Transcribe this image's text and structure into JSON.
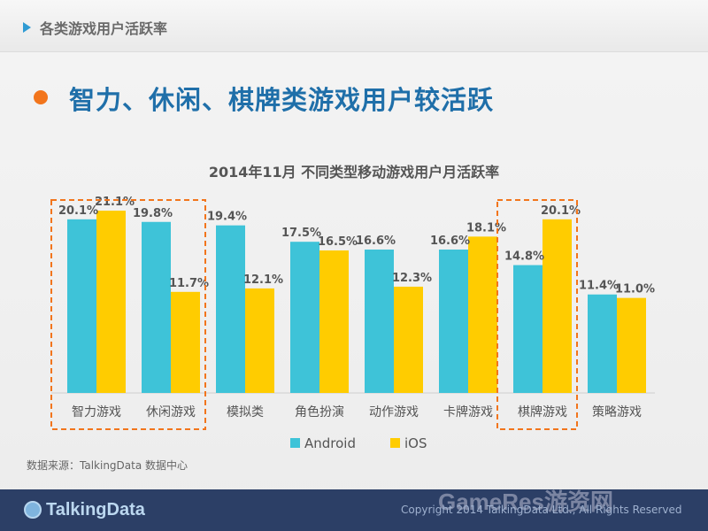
{
  "header": {
    "section_title": "各类游戏用户活跃率"
  },
  "headline": "智力、休闲、棋牌类游戏用户较活跃",
  "chart_data": {
    "type": "bar",
    "title": "2014年11月 不同类型移动游戏用户月活跃率",
    "categories": [
      "智力游戏",
      "休闲游戏",
      "模拟类",
      "角色扮演",
      "动作游戏",
      "卡牌游戏",
      "棋牌游戏",
      "策略游戏"
    ],
    "series": [
      {
        "name": "Android",
        "values": [
          20.1,
          19.8,
          19.4,
          17.5,
          16.6,
          16.6,
          14.8,
          11.4
        ],
        "color": "#3ec3d8"
      },
      {
        "name": "iOS",
        "values": [
          21.1,
          11.7,
          12.1,
          16.5,
          12.3,
          18.1,
          20.1,
          11.0
        ],
        "color": "#ffcc00"
      }
    ],
    "ylim": [
      0,
      25
    ],
    "highlight_color": "#f2751c",
    "data_labels": true,
    "grid": false,
    "legend": "bottom"
  },
  "source_note": "数据来源：TalkingData 数据中心",
  "footer": {
    "logo_text": "TalkingData",
    "copyright": "Copyright 2014 TalkingData Ltd., All Rights Reserved",
    "watermark": "GameRes游资网"
  }
}
